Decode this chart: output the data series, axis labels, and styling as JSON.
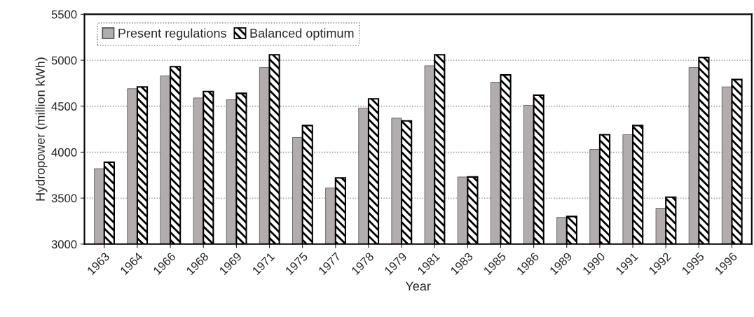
{
  "chart_data": {
    "type": "bar",
    "xlabel": "Year",
    "ylabel": "Hydropower (million kWh)",
    "categories": [
      "1963",
      "1964",
      "1966",
      "1968",
      "1969",
      "1971",
      "1975",
      "1977",
      "1978",
      "1979",
      "1981",
      "1983",
      "1985",
      "1986",
      "1989",
      "1990",
      "1991",
      "1992",
      "1995",
      "1996"
    ],
    "series": [
      {
        "name": "Present regulations",
        "color": "#b3acac",
        "values": [
          3820,
          4690,
          4830,
          4590,
          4570,
          4920,
          4160,
          3610,
          4480,
          4370,
          4940,
          3730,
          4760,
          4510,
          3290,
          4030,
          4190,
          3390,
          4920,
          4710
        ]
      },
      {
        "name": "Balanced optimum",
        "color": "#000000",
        "values": [
          3890,
          4710,
          4930,
          4660,
          4640,
          5060,
          4290,
          3720,
          4580,
          4340,
          5060,
          3730,
          4840,
          4620,
          3300,
          4190,
          4290,
          3510,
          5030,
          4790
        ]
      }
    ],
    "ylim": [
      3000,
      5500
    ],
    "yticks": [
      3000,
      3500,
      4000,
      4500,
      5000,
      5500
    ],
    "grid": "y",
    "legend": "top left"
  }
}
